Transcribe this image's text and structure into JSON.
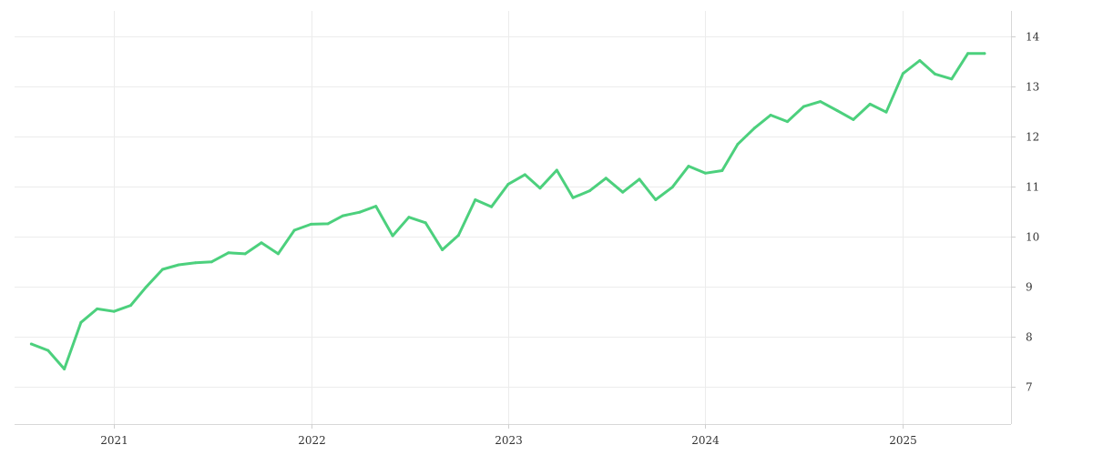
{
  "chart_data": {
    "type": "line",
    "title": "",
    "xlabel": "",
    "ylabel": "",
    "grid": true,
    "y_axis_side": "right",
    "line_color": "#4cd07d",
    "x_tick_labels": [
      "2021",
      "2022",
      "2023",
      "2024",
      "2025"
    ],
    "y_tick_labels": [
      "7",
      "8",
      "9",
      "10",
      "11",
      "12",
      "13",
      "14"
    ],
    "ylim": [
      6.25,
      14.5
    ],
    "xlim": [
      "2020-07-01",
      "2025-07-20"
    ],
    "series": [
      {
        "values": [
          [
            "2020-08-01",
            7.85
          ],
          [
            "2020-09-01",
            7.72
          ],
          [
            "2020-10-01",
            7.35
          ],
          [
            "2020-11-01",
            8.28
          ],
          [
            "2020-12-01",
            8.55
          ],
          [
            "2021-01-01",
            8.5
          ],
          [
            "2021-02-01",
            8.62
          ],
          [
            "2021-03-01",
            8.98
          ],
          [
            "2021-04-01",
            9.34
          ],
          [
            "2021-05-01",
            9.43
          ],
          [
            "2021-06-01",
            9.47
          ],
          [
            "2021-07-01",
            9.49
          ],
          [
            "2021-08-01",
            9.67
          ],
          [
            "2021-09-01",
            9.65
          ],
          [
            "2021-10-01",
            9.87
          ],
          [
            "2021-11-01",
            9.65
          ],
          [
            "2021-12-01",
            10.12
          ],
          [
            "2022-01-01",
            10.24
          ],
          [
            "2022-02-01",
            10.25
          ],
          [
            "2022-03-01",
            10.41
          ],
          [
            "2022-04-01",
            10.48
          ],
          [
            "2022-05-01",
            10.6
          ],
          [
            "2022-06-01",
            10.01
          ],
          [
            "2022-07-01",
            10.38
          ],
          [
            "2022-08-01",
            10.27
          ],
          [
            "2022-09-01",
            9.73
          ],
          [
            "2022-10-01",
            10.02
          ],
          [
            "2022-11-01",
            10.73
          ],
          [
            "2022-12-01",
            10.59
          ],
          [
            "2023-01-01",
            11.04
          ],
          [
            "2023-02-01",
            11.23
          ],
          [
            "2023-03-01",
            10.96
          ],
          [
            "2023-04-01",
            11.32
          ],
          [
            "2023-05-01",
            10.77
          ],
          [
            "2023-06-01",
            10.91
          ],
          [
            "2023-07-01",
            11.16
          ],
          [
            "2023-08-01",
            10.88
          ],
          [
            "2023-09-01",
            11.14
          ],
          [
            "2023-10-01",
            10.73
          ],
          [
            "2023-11-01",
            10.98
          ],
          [
            "2023-12-01",
            11.4
          ],
          [
            "2024-01-01",
            11.26
          ],
          [
            "2024-02-01",
            11.31
          ],
          [
            "2024-03-01",
            11.84
          ],
          [
            "2024-04-01",
            12.16
          ],
          [
            "2024-05-01",
            12.42
          ],
          [
            "2024-06-01",
            12.29
          ],
          [
            "2024-07-01",
            12.59
          ],
          [
            "2024-08-01",
            12.69
          ],
          [
            "2024-09-01",
            12.51
          ],
          [
            "2024-10-01",
            12.33
          ],
          [
            "2024-11-01",
            12.64
          ],
          [
            "2024-12-01",
            12.48
          ],
          [
            "2025-01-01",
            13.25
          ],
          [
            "2025-02-01",
            13.51
          ],
          [
            "2025-03-01",
            13.24
          ],
          [
            "2025-04-01",
            13.14
          ],
          [
            "2025-05-01",
            13.65
          ],
          [
            "2025-06-01",
            13.65
          ]
        ]
      }
    ]
  }
}
